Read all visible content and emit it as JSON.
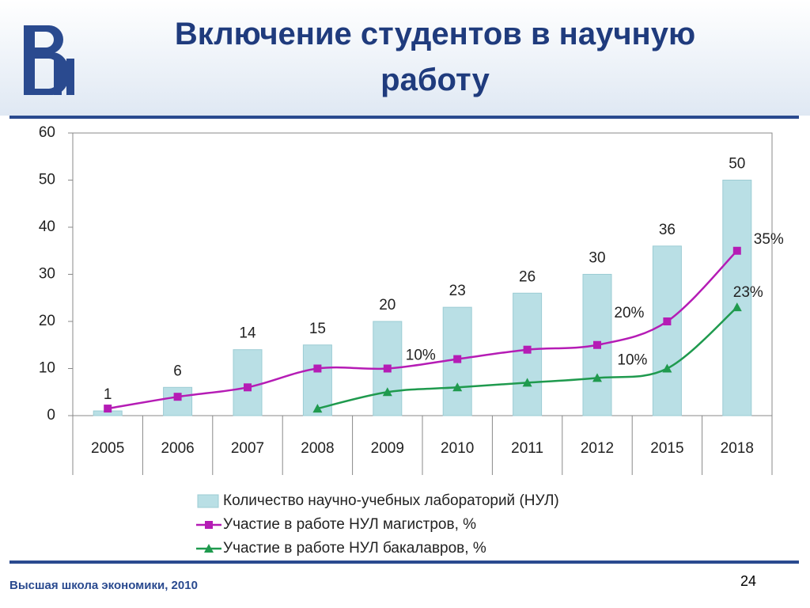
{
  "slide": {
    "title": "Включение студентов в научную работу",
    "footer": "Высшая школа экономики, 2010",
    "page_number": "24"
  },
  "chart_data": {
    "type": "bar",
    "categories": [
      "2005",
      "2006",
      "2007",
      "2008",
      "2009",
      "2010",
      "2011",
      "2012",
      "2015",
      "2018"
    ],
    "ylim": [
      0,
      60
    ],
    "yticks": [
      0,
      10,
      20,
      30,
      40,
      50,
      60
    ],
    "grid": false,
    "legend": "bottom",
    "series": [
      {
        "name": "Количество научно-учебных лабораторий (НУЛ)",
        "type": "bar",
        "color": "#b9dfe5",
        "values": [
          1,
          6,
          14,
          15,
          20,
          23,
          26,
          30,
          36,
          50
        ]
      },
      {
        "name": "Участие в работе НУЛ магистров, %",
        "type": "line",
        "color": "#b51cb5",
        "values": [
          1.5,
          4,
          6,
          10,
          10,
          12,
          14,
          15,
          20,
          35
        ],
        "value_labels": [
          null,
          null,
          null,
          null,
          "10%",
          null,
          null,
          null,
          "20%",
          "35%"
        ]
      },
      {
        "name": "Участие в работе НУЛ бакалавров, %",
        "type": "line",
        "color": "#1f9a4e",
        "values": [
          null,
          null,
          null,
          1.5,
          5,
          6,
          7,
          8,
          10,
          23
        ],
        "value_labels": [
          null,
          null,
          null,
          null,
          null,
          null,
          null,
          null,
          "10%",
          "23%"
        ]
      }
    ]
  }
}
